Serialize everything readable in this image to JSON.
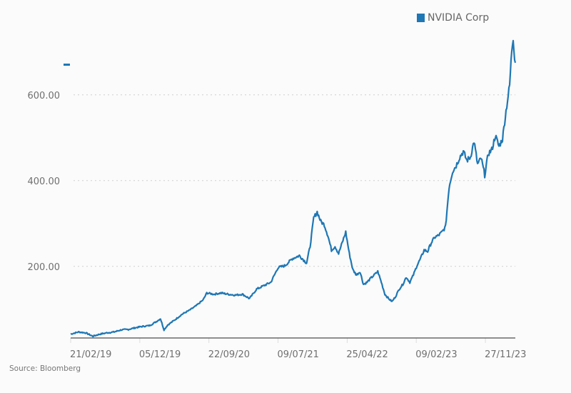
{
  "chart_data": {
    "type": "line",
    "title": "",
    "xlabel": "",
    "ylabel": "",
    "ylim": [
      33,
      788
    ],
    "y_ticks": [
      200,
      400,
      600
    ],
    "y_tick_labels": [
      "200.00",
      "400.00",
      "600.00"
    ],
    "x_tick_labels": [
      "21/02/19",
      "05/12/19",
      "22/09/20",
      "09/07/21",
      "25/04/22",
      "09/02/23",
      "27/11/23"
    ],
    "x_index_range": [
      0,
      625
    ],
    "x_tick_index": [
      0,
      97,
      194,
      291,
      388,
      485,
      582
    ],
    "grid": "horizontal dotted",
    "legend": {
      "position": "top-right",
      "entries": [
        "NVIDIA Corp"
      ]
    },
    "color": "#1f77b4",
    "series": [
      {
        "name": "NVIDIA Corp",
        "x": [
          0,
          11,
          21,
          31,
          41,
          51,
          61,
          71,
          81,
          91,
          101,
          111,
          121,
          126,
          131,
          136,
          146,
          156,
          166,
          176,
          186,
          191,
          201,
          211,
          221,
          231,
          241,
          251,
          261,
          271,
          281,
          291,
          301,
          311,
          321,
          331,
          336,
          341,
          346,
          351,
          356,
          361,
          366,
          371,
          376,
          381,
          386,
          391,
          396,
          401,
          406,
          411,
          416,
          421,
          426,
          431,
          436,
          441,
          446,
          451,
          456,
          461,
          466,
          471,
          476,
          481,
          486,
          491,
          496,
          501,
          506,
          511,
          516,
          521,
          526,
          531,
          536,
          541,
          546,
          551,
          556,
          561,
          566,
          571,
          576,
          581,
          586,
          591,
          596,
          601,
          606,
          611,
          616,
          619,
          621,
          623,
          624
        ],
        "values": [
          42,
          47,
          45,
          37,
          42,
          45,
          47,
          52,
          53,
          57,
          60,
          62,
          72,
          78,
          52,
          63,
          75,
          88,
          97,
          108,
          122,
          138,
          135,
          138,
          135,
          133,
          135,
          125,
          147,
          155,
          163,
          197,
          202,
          218,
          225,
          208,
          247,
          313,
          327,
          305,
          297,
          272,
          238,
          247,
          230,
          255,
          280,
          230,
          192,
          180,
          188,
          158,
          163,
          172,
          180,
          188,
          163,
          135,
          125,
          118,
          130,
          147,
          158,
          175,
          163,
          180,
          202,
          218,
          238,
          235,
          255,
          268,
          272,
          280,
          292,
          385,
          422,
          435,
          455,
          468,
          447,
          455,
          492,
          438,
          452,
          413,
          463,
          472,
          505,
          480,
          497,
          563,
          622,
          705,
          735,
          688,
          675
        ]
      }
    ]
  },
  "source": "Source: Bloomberg"
}
